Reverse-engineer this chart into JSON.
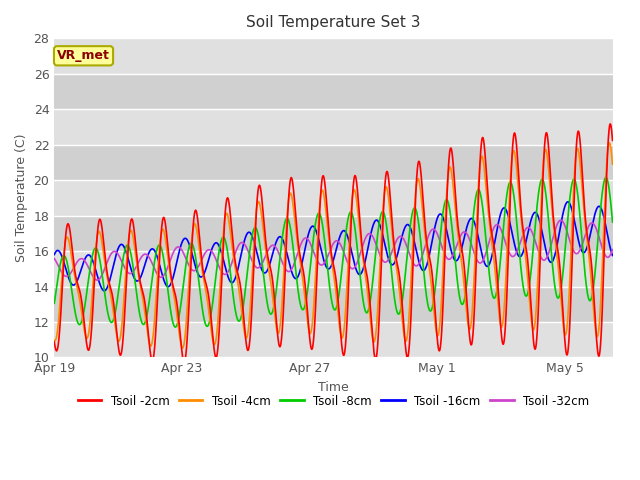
{
  "title": "Soil Temperature Set 3",
  "xlabel": "Time",
  "ylabel": "Soil Temperature (C)",
  "ylim": [
    10,
    28
  ],
  "xlim_days": [
    0,
    17.5
  ],
  "background_color": "#ffffff",
  "plot_bg_color": "#f0f0f0",
  "grid_color": "#ffffff",
  "band_color_light": "#e8e8e8",
  "band_color_dark": "#d0d0d0",
  "annotation_text": "VR_met",
  "annotation_bg": "#ffff99",
  "annotation_border": "#aaaa00",
  "legend_entries": [
    "Tsoil -2cm",
    "Tsoil -4cm",
    "Tsoil -8cm",
    "Tsoil -16cm",
    "Tsoil -32cm"
  ],
  "colors": [
    "#ff0000",
    "#ff8c00",
    "#00cc00",
    "#0000ff",
    "#cc44cc"
  ],
  "tick_labels_x": [
    "Apr 19",
    "Apr 23",
    "Apr 27",
    "May 1",
    "May 5"
  ],
  "tick_positions_x": [
    0,
    4,
    8,
    12,
    16
  ],
  "yticks": [
    10,
    12,
    14,
    16,
    18,
    20,
    22,
    24,
    26,
    28
  ]
}
